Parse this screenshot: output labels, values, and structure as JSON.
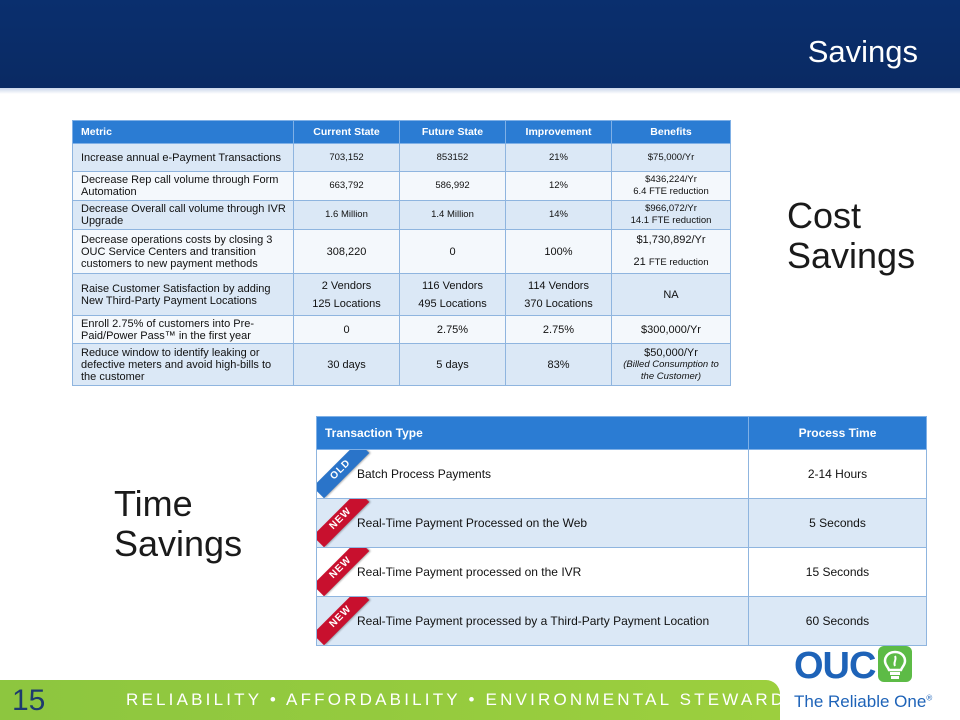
{
  "slide": {
    "title": "Savings",
    "cost_label_line1": "Cost",
    "cost_label_line2": "Savings",
    "time_label_line1": "Time",
    "time_label_line2": "Savings",
    "page_number": "15",
    "tagline": "RELIABILITY • AFFORDABILITY • ENVIRONMENTAL STEWARDSHIP"
  },
  "metrics_table": {
    "headers": [
      "Metric",
      "Current State",
      "Future State",
      "Improvement",
      "Benefits"
    ],
    "rows": [
      {
        "metric": "Increase annual e-Payment Transactions",
        "current": "703,152",
        "future": "853152",
        "improvement": "21%",
        "benefit": "$75,000/Yr"
      },
      {
        "metric": "Decrease Rep call volume through Form Automation",
        "current": "663,792",
        "future": "586,992",
        "improvement": "12%",
        "benefit": "$436,224/Yr",
        "benefit_note": "6.4 FTE reduction"
      },
      {
        "metric": "Decrease Overall call volume through IVR Upgrade",
        "current": "1.6 Million",
        "future": "1.4 Million",
        "improvement": "14%",
        "benefit": "$966,072/Yr",
        "benefit_note": "14.1 FTE reduction"
      },
      {
        "metric": "Decrease operations costs by closing 3 OUC Service Centers and transition customers to new payment methods",
        "current": "308,220",
        "future": "0",
        "improvement": "100%",
        "benefit": "$1,730,892/Yr",
        "benefit_note_num": "21",
        "benefit_note_text": "FTE reduction"
      },
      {
        "metric": "Raise Customer Satisfaction by adding New Third-Party Payment Locations",
        "current": "2 Vendors",
        "current2": "125 Locations",
        "future": "116 Vendors",
        "future2": "495 Locations",
        "improvement": "114 Vendors",
        "improvement2": "370 Locations",
        "benefit": "NA"
      },
      {
        "metric": "Enroll 2.75% of customers into Pre-Paid/Power Pass™ in the first year",
        "current": "0",
        "future": "2.75%",
        "improvement": "2.75%",
        "benefit": "$300,000/Yr"
      },
      {
        "metric": "Reduce window to identify leaking or defective meters and avoid high-bills to the customer",
        "current": "30 days",
        "future": "5 days",
        "improvement": "83%",
        "benefit": "$50,000/Yr",
        "benefit_note": "(Billed Consumption to the Customer)"
      }
    ]
  },
  "transaction_table": {
    "headers": [
      "Transaction Type",
      "Process Time"
    ],
    "rows": [
      {
        "badge": "OLD",
        "type": "Batch Process Payments",
        "time": "2-14 Hours"
      },
      {
        "badge": "NEW",
        "type": "Real-Time Payment Processed on the Web",
        "time": "5 Seconds"
      },
      {
        "badge": "NEW",
        "type": "Real-Time Payment processed on the IVR",
        "time": "15 Seconds"
      },
      {
        "badge": "NEW",
        "type": "Real-Time Payment processed by a Third-Party Payment Location",
        "time": "60 Seconds"
      }
    ]
  },
  "logo": {
    "name": "OUC",
    "slogan": "The Reliable One",
    "trademark": "®",
    "brand_blue": "#1e63b8",
    "brand_green": "#5dbb46"
  },
  "colors": {
    "header_navy": "#0a2f6e",
    "table_header": "#2b7cd3",
    "footer_green": "#8dc63f",
    "badge_old": "#2a74c9",
    "badge_new": "#c8102e"
  }
}
